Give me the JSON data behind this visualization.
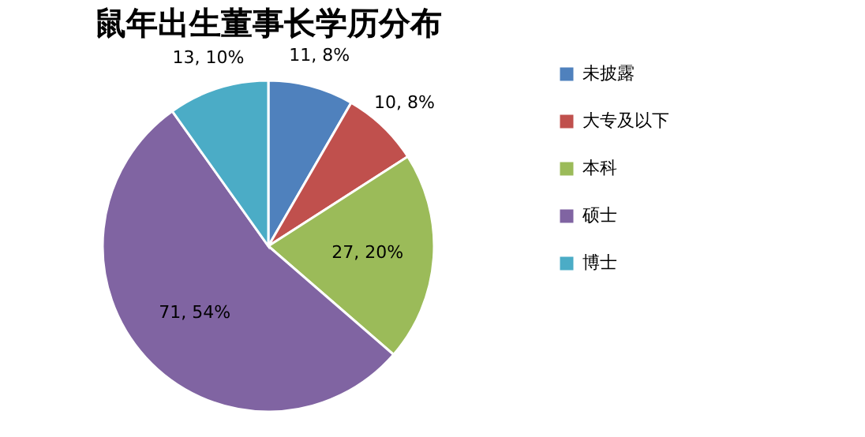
{
  "chart_data": {
    "type": "pie",
    "title": "鼠年出生董事长学历分布",
    "categories": [
      "未披露",
      "大专及以下",
      "本科",
      "硕士",
      "博士"
    ],
    "values": [
      11,
      10,
      27,
      71,
      13
    ],
    "colors": [
      "#4f81bd",
      "#c0504d",
      "#9bbb59",
      "#8064a2",
      "#4bacc6"
    ],
    "value_labels": [
      "11, 8%",
      "10, 8%",
      "27, 20%",
      "71, 54%",
      "13, 10%"
    ],
    "legend": "right"
  }
}
